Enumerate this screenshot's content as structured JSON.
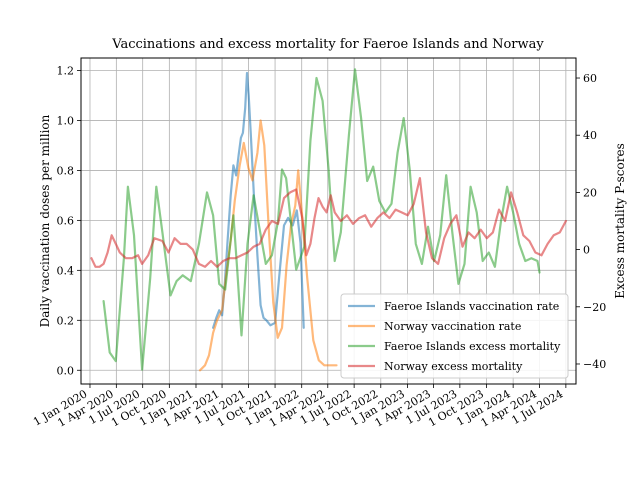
{
  "chart_data": {
    "type": "line",
    "title": "Vaccinations and excess mortality for Faeroe Islands and Norway",
    "xlabel": "",
    "ylabel_left": "Daily vaccination doses per million",
    "ylabel_right": "Excess mortality P-scores",
    "x_tick_labels": [
      "1 Jan 2020",
      "1 Apr 2020",
      "1 Jul 2020",
      "1 Oct 2020",
      "1 Jan 2021",
      "1 Apr 2021",
      "1 Jul 2021",
      "1 Oct 2021",
      "1 Jan 2022",
      "1 Apr 2022",
      "1 Jul 2022",
      "1 Oct 2022",
      "1 Jan 2023",
      "1 Apr 2023",
      "1 Jul 2023",
      "1 Oct 2023",
      "1 Jan 2024",
      "1 Apr 2024",
      "1 Jul 2024"
    ],
    "y_left_ticks": [
      "0.0",
      "0.2",
      "0.4",
      "0.6",
      "0.8",
      "1.0",
      "1.2"
    ],
    "y_right_ticks": [
      "−40",
      "−20",
      "0",
      "20",
      "40",
      "60"
    ],
    "y_left_range": [
      -0.055,
      1.25
    ],
    "y_right_range": [
      -47,
      67
    ],
    "x_range": [
      "2019-12-01",
      "2024-08-05"
    ],
    "grid": true,
    "legend_position": "lower-right",
    "series": [
      {
        "name": "Faeroe Islands vaccination rate",
        "axis": "left",
        "color": "#1f77b4",
        "points": [
          [
            "2021-03-01",
            0.17
          ],
          [
            "2021-03-12",
            0.21
          ],
          [
            "2021-03-22",
            0.24
          ],
          [
            "2021-04-01",
            0.22
          ],
          [
            "2021-04-10",
            0.34
          ],
          [
            "2021-04-20",
            0.52
          ],
          [
            "2021-05-01",
            0.7
          ],
          [
            "2021-05-10",
            0.82
          ],
          [
            "2021-05-20",
            0.78
          ],
          [
            "2021-05-28",
            0.86
          ],
          [
            "2021-06-05",
            0.93
          ],
          [
            "2021-06-12",
            0.95
          ],
          [
            "2021-06-20",
            1.05
          ],
          [
            "2021-06-26",
            1.19
          ],
          [
            "2021-07-02",
            1.1
          ],
          [
            "2021-07-10",
            0.93
          ],
          [
            "2021-07-20",
            0.7
          ],
          [
            "2021-08-01",
            0.46
          ],
          [
            "2021-08-12",
            0.26
          ],
          [
            "2021-08-22",
            0.21
          ],
          [
            "2021-09-01",
            0.2
          ],
          [
            "2021-09-15",
            0.18
          ],
          [
            "2021-10-01",
            0.19
          ],
          [
            "2021-10-15",
            0.37
          ],
          [
            "2021-11-01",
            0.58
          ],
          [
            "2021-11-15",
            0.61
          ],
          [
            "2021-12-01",
            0.58
          ],
          [
            "2021-12-15",
            0.64
          ],
          [
            "2021-12-28",
            0.51
          ],
          [
            "2022-01-08",
            0.17
          ]
        ]
      },
      {
        "name": "Norway vaccination rate",
        "axis": "left",
        "color": "#ff7f0e",
        "points": [
          [
            "2021-01-15",
            0.0
          ],
          [
            "2021-02-01",
            0.02
          ],
          [
            "2021-02-15",
            0.06
          ],
          [
            "2021-03-01",
            0.15
          ],
          [
            "2021-03-15",
            0.2
          ],
          [
            "2021-04-01",
            0.24
          ],
          [
            "2021-04-15",
            0.38
          ],
          [
            "2021-05-01",
            0.52
          ],
          [
            "2021-05-15",
            0.68
          ],
          [
            "2021-06-01",
            0.82
          ],
          [
            "2021-06-15",
            0.91
          ],
          [
            "2021-07-01",
            0.81
          ],
          [
            "2021-07-15",
            0.76
          ],
          [
            "2021-08-01",
            0.87
          ],
          [
            "2021-08-12",
            1.0
          ],
          [
            "2021-08-25",
            0.9
          ],
          [
            "2021-09-10",
            0.55
          ],
          [
            "2021-09-25",
            0.27
          ],
          [
            "2021-10-10",
            0.13
          ],
          [
            "2021-10-25",
            0.17
          ],
          [
            "2021-11-10",
            0.42
          ],
          [
            "2021-11-25",
            0.58
          ],
          [
            "2021-12-10",
            0.66
          ],
          [
            "2021-12-20",
            0.8
          ],
          [
            "2022-01-01",
            0.64
          ],
          [
            "2022-01-20",
            0.37
          ],
          [
            "2022-02-10",
            0.12
          ],
          [
            "2022-03-01",
            0.04
          ],
          [
            "2022-03-20",
            0.02
          ],
          [
            "2022-04-15",
            0.02
          ],
          [
            "2022-05-01",
            0.02
          ]
        ]
      },
      {
        "name": "Faeroe Islands excess mortality",
        "axis": "right",
        "color": "#2ca02c",
        "points": [
          [
            "2020-02-17",
            -18
          ],
          [
            "2020-03-09",
            -36
          ],
          [
            "2020-03-30",
            -39
          ],
          [
            "2020-04-27",
            -3
          ],
          [
            "2020-05-11",
            22
          ],
          [
            "2020-06-01",
            5
          ],
          [
            "2020-06-29",
            -42
          ],
          [
            "2020-07-27",
            -10
          ],
          [
            "2020-08-17",
            22
          ],
          [
            "2020-09-07",
            6
          ],
          [
            "2020-10-05",
            -16
          ],
          [
            "2020-10-26",
            -11
          ],
          [
            "2020-11-16",
            -9
          ],
          [
            "2020-12-14",
            -11
          ],
          [
            "2021-01-11",
            2
          ],
          [
            "2021-02-08",
            20
          ],
          [
            "2021-03-01",
            12
          ],
          [
            "2021-03-22",
            -12
          ],
          [
            "2021-04-12",
            -14
          ],
          [
            "2021-05-10",
            12
          ],
          [
            "2021-05-24",
            -8
          ],
          [
            "2021-06-07",
            -30
          ],
          [
            "2021-06-28",
            2
          ],
          [
            "2021-07-19",
            19
          ],
          [
            "2021-08-09",
            7
          ],
          [
            "2021-08-30",
            -5
          ],
          [
            "2021-09-20",
            -2
          ],
          [
            "2021-10-11",
            10
          ],
          [
            "2021-10-25",
            28
          ],
          [
            "2021-11-08",
            25
          ],
          [
            "2021-12-13",
            -7
          ],
          [
            "2022-01-10",
            1
          ],
          [
            "2022-01-31",
            38
          ],
          [
            "2022-02-21",
            60
          ],
          [
            "2022-03-14",
            52
          ],
          [
            "2022-04-04",
            28
          ],
          [
            "2022-04-25",
            -4
          ],
          [
            "2022-05-16",
            6
          ],
          [
            "2022-06-13",
            40
          ],
          [
            "2022-07-04",
            63
          ],
          [
            "2022-07-25",
            46
          ],
          [
            "2022-08-15",
            24
          ],
          [
            "2022-09-05",
            29
          ],
          [
            "2022-09-26",
            17
          ],
          [
            "2022-10-17",
            13
          ],
          [
            "2022-11-07",
            16
          ],
          [
            "2022-11-28",
            34
          ],
          [
            "2022-12-19",
            46
          ],
          [
            "2023-01-09",
            28
          ],
          [
            "2023-01-30",
            2
          ],
          [
            "2023-02-20",
            -5
          ],
          [
            "2023-03-13",
            8
          ],
          [
            "2023-04-03",
            -4
          ],
          [
            "2023-04-24",
            5
          ],
          [
            "2023-05-15",
            26
          ],
          [
            "2023-06-05",
            6
          ],
          [
            "2023-06-26",
            -12
          ],
          [
            "2023-07-17",
            -5
          ],
          [
            "2023-08-07",
            22
          ],
          [
            "2023-08-28",
            13
          ],
          [
            "2023-09-18",
            -4
          ],
          [
            "2023-10-09",
            -1
          ],
          [
            "2023-10-30",
            -6
          ],
          [
            "2023-11-20",
            10
          ],
          [
            "2023-12-11",
            22
          ],
          [
            "2024-01-01",
            13
          ],
          [
            "2024-01-22",
            2
          ],
          [
            "2024-02-12",
            -4
          ],
          [
            "2024-03-04",
            -3
          ],
          [
            "2024-03-25",
            -4
          ],
          [
            "2024-04-01",
            -8
          ]
        ]
      },
      {
        "name": "Norway excess mortality",
        "axis": "right",
        "color": "#d62728",
        "points": [
          [
            "2020-01-06",
            -3
          ],
          [
            "2020-01-20",
            -6
          ],
          [
            "2020-02-03",
            -6
          ],
          [
            "2020-02-17",
            -5
          ],
          [
            "2020-03-02",
            -1
          ],
          [
            "2020-03-16",
            5
          ],
          [
            "2020-03-30",
            2
          ],
          [
            "2020-04-13",
            -1
          ],
          [
            "2020-05-04",
            -3
          ],
          [
            "2020-05-25",
            -3
          ],
          [
            "2020-06-15",
            -2
          ],
          [
            "2020-06-29",
            -5
          ],
          [
            "2020-07-20",
            -2
          ],
          [
            "2020-08-10",
            4
          ],
          [
            "2020-09-07",
            3
          ],
          [
            "2020-09-28",
            -1
          ],
          [
            "2020-10-19",
            4
          ],
          [
            "2020-11-09",
            2
          ],
          [
            "2020-11-30",
            2
          ],
          [
            "2020-12-21",
            0
          ],
          [
            "2021-01-11",
            -5
          ],
          [
            "2021-02-01",
            -6
          ],
          [
            "2021-02-22",
            -4
          ],
          [
            "2021-03-15",
            -6
          ],
          [
            "2021-04-05",
            -4
          ],
          [
            "2021-04-26",
            -3
          ],
          [
            "2021-05-17",
            -3
          ],
          [
            "2021-06-07",
            -2
          ],
          [
            "2021-06-28",
            -1
          ],
          [
            "2021-07-19",
            1
          ],
          [
            "2021-08-09",
            2
          ],
          [
            "2021-08-30",
            7
          ],
          [
            "2021-09-20",
            10
          ],
          [
            "2021-10-11",
            9
          ],
          [
            "2021-11-01",
            18
          ],
          [
            "2021-11-22",
            20
          ],
          [
            "2021-12-13",
            21
          ],
          [
            "2022-01-03",
            11
          ],
          [
            "2022-01-17",
            -2
          ],
          [
            "2022-01-31",
            2
          ],
          [
            "2022-02-14",
            11
          ],
          [
            "2022-02-28",
            18
          ],
          [
            "2022-03-14",
            15
          ],
          [
            "2022-03-28",
            13
          ],
          [
            "2022-04-11",
            19
          ],
          [
            "2022-04-25",
            13
          ],
          [
            "2022-05-16",
            10
          ],
          [
            "2022-06-06",
            12
          ],
          [
            "2022-06-27",
            9
          ],
          [
            "2022-07-18",
            11
          ],
          [
            "2022-08-08",
            12
          ],
          [
            "2022-08-29",
            8
          ],
          [
            "2022-09-19",
            11
          ],
          [
            "2022-10-10",
            13
          ],
          [
            "2022-10-31",
            11
          ],
          [
            "2022-11-21",
            14
          ],
          [
            "2022-12-12",
            13
          ],
          [
            "2023-01-02",
            12
          ],
          [
            "2023-01-23",
            16
          ],
          [
            "2023-02-13",
            25
          ],
          [
            "2023-03-06",
            6
          ],
          [
            "2023-03-27",
            -3
          ],
          [
            "2023-04-17",
            -5
          ],
          [
            "2023-05-08",
            4
          ],
          [
            "2023-05-29",
            9
          ],
          [
            "2023-06-19",
            12
          ],
          [
            "2023-07-10",
            1
          ],
          [
            "2023-07-31",
            6
          ],
          [
            "2023-08-21",
            4
          ],
          [
            "2023-09-11",
            7
          ],
          [
            "2023-10-02",
            4
          ],
          [
            "2023-10-23",
            6
          ],
          [
            "2023-11-13",
            14
          ],
          [
            "2023-12-04",
            10
          ],
          [
            "2023-12-25",
            20
          ],
          [
            "2024-01-15",
            13
          ],
          [
            "2024-02-05",
            5
          ],
          [
            "2024-02-26",
            3
          ],
          [
            "2024-03-18",
            -1
          ],
          [
            "2024-04-08",
            -2
          ],
          [
            "2024-04-29",
            2
          ],
          [
            "2024-05-20",
            5
          ],
          [
            "2024-06-10",
            6
          ],
          [
            "2024-07-01",
            10
          ]
        ]
      }
    ]
  }
}
